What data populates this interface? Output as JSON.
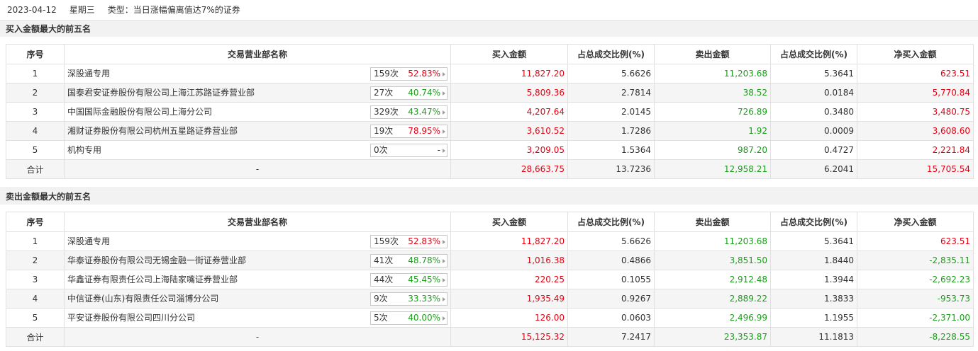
{
  "header": {
    "date": "2023-04-12",
    "weekday": "星期三",
    "type": "类型：当日涨幅偏离值达7%的证券"
  },
  "columns": [
    "序号",
    "交易营业部名称",
    "买入金额",
    "占总成交比例(%)",
    "卖出金额",
    "占总成交比例(%)",
    "净买入金额"
  ],
  "colors": {
    "up": "#e60012",
    "down": "#1a9e1a"
  },
  "sections": [
    {
      "title": "买入金额最大的前五名",
      "rows": [
        {
          "no": "1",
          "name": "深股通专用",
          "count": "159次",
          "rate": "52.83%",
          "rate_color": "up",
          "buy": "11,827.20",
          "buy_pct": "5.6626",
          "sell": "11,203.68",
          "sell_pct": "5.3641",
          "net": "623.51",
          "net_color": "up"
        },
        {
          "no": "2",
          "name": "国泰君安证券股份有限公司上海江苏路证券营业部",
          "count": "27次",
          "rate": "40.74%",
          "rate_color": "down",
          "buy": "5,809.36",
          "buy_pct": "2.7814",
          "sell": "38.52",
          "sell_pct": "0.0184",
          "net": "5,770.84",
          "net_color": "up"
        },
        {
          "no": "3",
          "name": "中国国际金融股份有限公司上海分公司",
          "count": "329次",
          "rate": "43.47%",
          "rate_color": "down",
          "buy": "4,207.64",
          "buy_pct": "2.0145",
          "sell": "726.89",
          "sell_pct": "0.3480",
          "net": "3,480.75",
          "net_color": "up"
        },
        {
          "no": "4",
          "name": "湘财证券股份有限公司杭州五星路证券营业部",
          "count": "19次",
          "rate": "78.95%",
          "rate_color": "up",
          "buy": "3,610.52",
          "buy_pct": "1.7286",
          "sell": "1.92",
          "sell_pct": "0.0009",
          "net": "3,608.60",
          "net_color": "up"
        },
        {
          "no": "5",
          "name": "机构专用",
          "count": "0次",
          "rate": "-",
          "rate_color": "none",
          "buy": "3,209.05",
          "buy_pct": "1.5364",
          "sell": "987.20",
          "sell_pct": "0.4727",
          "net": "2,221.84",
          "net_color": "up"
        }
      ],
      "total": {
        "label": "合计",
        "name": "-",
        "buy": "28,663.75",
        "buy_pct": "13.7236",
        "sell": "12,958.21",
        "sell_pct": "6.2041",
        "net": "15,705.54",
        "net_color": "up"
      }
    },
    {
      "title": "卖出金额最大的前五名",
      "rows": [
        {
          "no": "1",
          "name": "深股通专用",
          "count": "159次",
          "rate": "52.83%",
          "rate_color": "up",
          "buy": "11,827.20",
          "buy_pct": "5.6626",
          "sell": "11,203.68",
          "sell_pct": "5.3641",
          "net": "623.51",
          "net_color": "up"
        },
        {
          "no": "2",
          "name": "华泰证券股份有限公司无锡金融一街证券营业部",
          "count": "41次",
          "rate": "48.78%",
          "rate_color": "down",
          "buy": "1,016.38",
          "buy_pct": "0.4866",
          "sell": "3,851.50",
          "sell_pct": "1.8440",
          "net": "-2,835.11",
          "net_color": "down"
        },
        {
          "no": "3",
          "name": "华鑫证券有限责任公司上海陆家嘴证券营业部",
          "count": "44次",
          "rate": "45.45%",
          "rate_color": "down",
          "buy": "220.25",
          "buy_pct": "0.1055",
          "sell": "2,912.48",
          "sell_pct": "1.3944",
          "net": "-2,692.23",
          "net_color": "down"
        },
        {
          "no": "4",
          "name": "中信证券(山东)有限责任公司淄博分公司",
          "count": "9次",
          "rate": "33.33%",
          "rate_color": "down",
          "buy": "1,935.49",
          "buy_pct": "0.9267",
          "sell": "2,889.22",
          "sell_pct": "1.3833",
          "net": "-953.73",
          "net_color": "down"
        },
        {
          "no": "5",
          "name": "平安证券股份有限公司四川分公司",
          "count": "5次",
          "rate": "40.00%",
          "rate_color": "down",
          "buy": "126.00",
          "buy_pct": "0.0603",
          "sell": "2,496.99",
          "sell_pct": "1.1955",
          "net": "-2,371.00",
          "net_color": "down"
        }
      ],
      "total": {
        "label": "合计",
        "name": "-",
        "buy": "15,125.32",
        "buy_pct": "7.2417",
        "sell": "23,353.87",
        "sell_pct": "11.1813",
        "net": "-8,228.55",
        "net_color": "down"
      }
    }
  ]
}
